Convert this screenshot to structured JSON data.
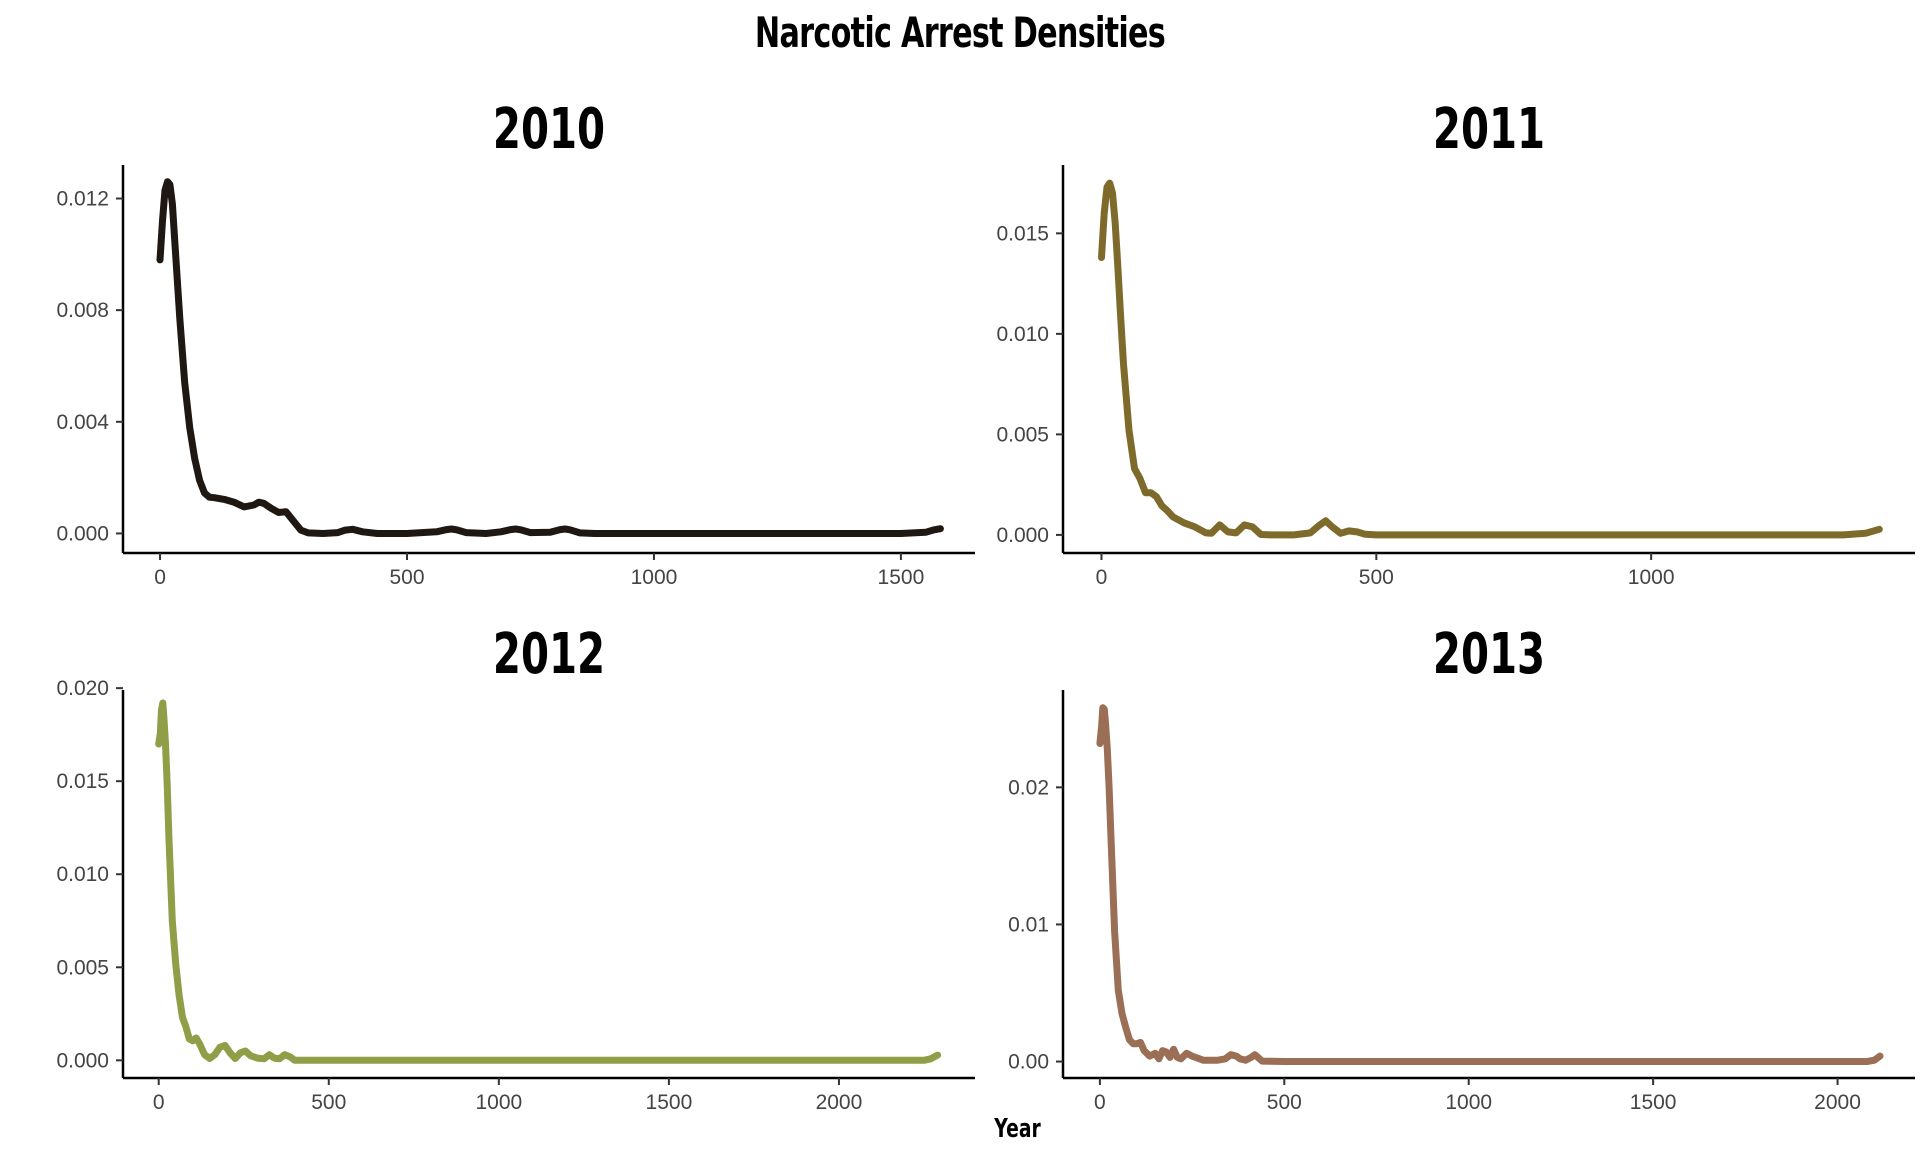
{
  "title": "Narcotic Arrest Densities",
  "x_axis_title": "Year",
  "chart_data": [
    {
      "type": "line",
      "title": "2010",
      "color": "#1f1711",
      "xlim": [
        -75,
        1650
      ],
      "ylim": [
        -0.0007,
        0.0132
      ],
      "xticks": [
        0,
        500,
        1000,
        1500
      ],
      "xtick_labels": [
        "0",
        "500",
        "1000",
        "1500"
      ],
      "yticks": [
        0.0,
        0.004,
        0.008,
        0.012
      ],
      "ytick_labels": [
        "0.000",
        "0.004",
        "0.008",
        "0.012"
      ],
      "x": [
        0,
        5,
        10,
        15,
        20,
        25,
        30,
        40,
        50,
        60,
        70,
        80,
        90,
        100,
        110,
        130,
        150,
        170,
        190,
        200,
        210,
        225,
        240,
        255,
        270,
        285,
        300,
        330,
        360,
        375,
        390,
        410,
        440,
        500,
        560,
        580,
        590,
        600,
        620,
        660,
        690,
        710,
        720,
        730,
        750,
        790,
        810,
        820,
        830,
        850,
        880,
        950,
        1000,
        1100,
        1200,
        1300,
        1400,
        1500,
        1550,
        1565,
        1580
      ],
      "y": [
        0.0098,
        0.0112,
        0.0123,
        0.0126,
        0.0125,
        0.0118,
        0.0104,
        0.0077,
        0.0054,
        0.0038,
        0.0027,
        0.0019,
        0.00145,
        0.0013,
        0.00128,
        0.00122,
        0.00112,
        0.00095,
        0.00102,
        0.00112,
        0.00108,
        0.0009,
        0.00075,
        0.00078,
        0.00045,
        0.00012,
        2e-05,
        0.0,
        3e-05,
        0.00012,
        0.00015,
        6e-05,
        0.0,
        0.0,
        6e-05,
        0.00014,
        0.00016,
        0.00013,
        3e-05,
        0.0,
        6e-05,
        0.00014,
        0.00016,
        0.00013,
        3e-05,
        4e-05,
        0.00014,
        0.00016,
        0.00013,
        2e-05,
        0.0,
        0.0,
        0.0,
        0.0,
        0.0,
        0.0,
        0.0,
        0.0,
        4e-05,
        0.00012,
        0.00017
      ]
    },
    {
      "type": "line",
      "title": "2011",
      "color": "#7e6b2c",
      "xlim": [
        -70,
        1480
      ],
      "ylim": [
        -0.0009,
        0.0184
      ],
      "xticks": [
        0,
        500,
        1000
      ],
      "xtick_labels": [
        "0",
        "500",
        "1000"
      ],
      "yticks": [
        0.0,
        0.005,
        0.01,
        0.015
      ],
      "ytick_labels": [
        "0.000",
        "0.005",
        "0.010",
        "0.015"
      ],
      "x": [
        0,
        5,
        10,
        15,
        20,
        25,
        30,
        35,
        40,
        50,
        60,
        70,
        80,
        90,
        100,
        110,
        120,
        130,
        150,
        170,
        190,
        200,
        215,
        230,
        245,
        260,
        275,
        290,
        310,
        350,
        380,
        395,
        408,
        420,
        435,
        450,
        465,
        480,
        500,
        600,
        800,
        1000,
        1200,
        1350,
        1390,
        1415
      ],
      "y": [
        0.0138,
        0.016,
        0.0173,
        0.0175,
        0.017,
        0.0155,
        0.0132,
        0.0108,
        0.0085,
        0.0052,
        0.0033,
        0.0028,
        0.0021,
        0.0021,
        0.0019,
        0.00145,
        0.0012,
        0.0009,
        0.0006,
        0.0004,
        0.0001,
        8e-05,
        0.0005,
        0.00015,
        0.0001,
        0.0005,
        0.0004,
        2e-05,
        0.0,
        0.0,
        0.0001,
        0.00045,
        0.0007,
        0.0004,
        8e-05,
        0.0002,
        0.00015,
        3e-05,
        0.0,
        0.0,
        0.0,
        0.0,
        0.0,
        0.0,
        8e-05,
        0.00028
      ]
    },
    {
      "type": "line",
      "title": "2012",
      "color": "#8f9e47",
      "xlim": [
        -105,
        2400
      ],
      "ylim": [
        -0.00095,
        0.0199
      ],
      "xticks": [
        0,
        500,
        1000,
        1500,
        2000
      ],
      "xtick_labels": [
        "0",
        "500",
        "1000",
        "1500",
        "2000"
      ],
      "yticks": [
        0.0,
        0.005,
        0.01,
        0.015,
        0.02
      ],
      "ytick_labels": [
        "0.000",
        "0.005",
        "0.010",
        "0.015",
        "0.020"
      ],
      "x": [
        0,
        5,
        8,
        12,
        15,
        20,
        25,
        30,
        40,
        50,
        60,
        70,
        80,
        90,
        100,
        110,
        120,
        135,
        150,
        165,
        180,
        195,
        210,
        225,
        240,
        255,
        270,
        290,
        310,
        325,
        340,
        355,
        370,
        385,
        400,
        420,
        500,
        700,
        1000,
        1500,
        2000,
        2250,
        2270,
        2290
      ],
      "y": [
        0.017,
        0.0176,
        0.0188,
        0.0192,
        0.0185,
        0.017,
        0.0148,
        0.012,
        0.0075,
        0.0052,
        0.0035,
        0.0023,
        0.0018,
        0.00115,
        0.00105,
        0.0012,
        0.0009,
        0.0003,
        0.0001,
        0.0003,
        0.0007,
        0.0008,
        0.0004,
        0.0001,
        0.0004,
        0.0005,
        0.00025,
        0.00012,
        8e-05,
        0.0003,
        0.00012,
        8e-05,
        0.0003,
        0.0002,
        0.0,
        0.0,
        0.0,
        0.0,
        0.0,
        0.0,
        0.0,
        0.0,
        8e-05,
        0.00028
      ]
    },
    {
      "type": "line",
      "title": "2013",
      "color": "#9a6f55",
      "xlim": [
        -100,
        2210
      ],
      "ylim": [
        -0.0012,
        0.0271
      ],
      "xticks": [
        0,
        500,
        1000,
        1500,
        2000
      ],
      "xtick_labels": [
        "0",
        "500",
        "1000",
        "1500",
        "2000"
      ],
      "yticks": [
        0.0,
        0.01,
        0.02
      ],
      "ytick_labels": [
        "0.00",
        "0.01",
        "0.02"
      ],
      "x": [
        0,
        5,
        8,
        12,
        15,
        20,
        25,
        30,
        40,
        50,
        60,
        70,
        80,
        90,
        100,
        110,
        120,
        135,
        150,
        160,
        170,
        180,
        190,
        200,
        210,
        220,
        235,
        250,
        280,
        320,
        340,
        355,
        370,
        380,
        395,
        410,
        420,
        440,
        500,
        800,
        1000,
        1500,
        2000,
        2080,
        2100,
        2115
      ],
      "y": [
        0.0232,
        0.0245,
        0.0258,
        0.0257,
        0.0248,
        0.0228,
        0.02,
        0.0165,
        0.0095,
        0.0052,
        0.0035,
        0.0025,
        0.0016,
        0.0013,
        0.0013,
        0.0014,
        0.0008,
        0.0004,
        0.0006,
        0.0002,
        0.0008,
        0.0007,
        0.0003,
        0.0009,
        0.0003,
        0.0002,
        0.0006,
        0.0004,
        0.0001,
        0.0001,
        0.0002,
        0.0005,
        0.0004,
        0.0002,
        0.0001,
        0.0003,
        0.0005,
        3e-05,
        0.0,
        0.0,
        0.0,
        0.0,
        0.0,
        0.0,
        0.0001,
        0.0004
      ]
    }
  ]
}
